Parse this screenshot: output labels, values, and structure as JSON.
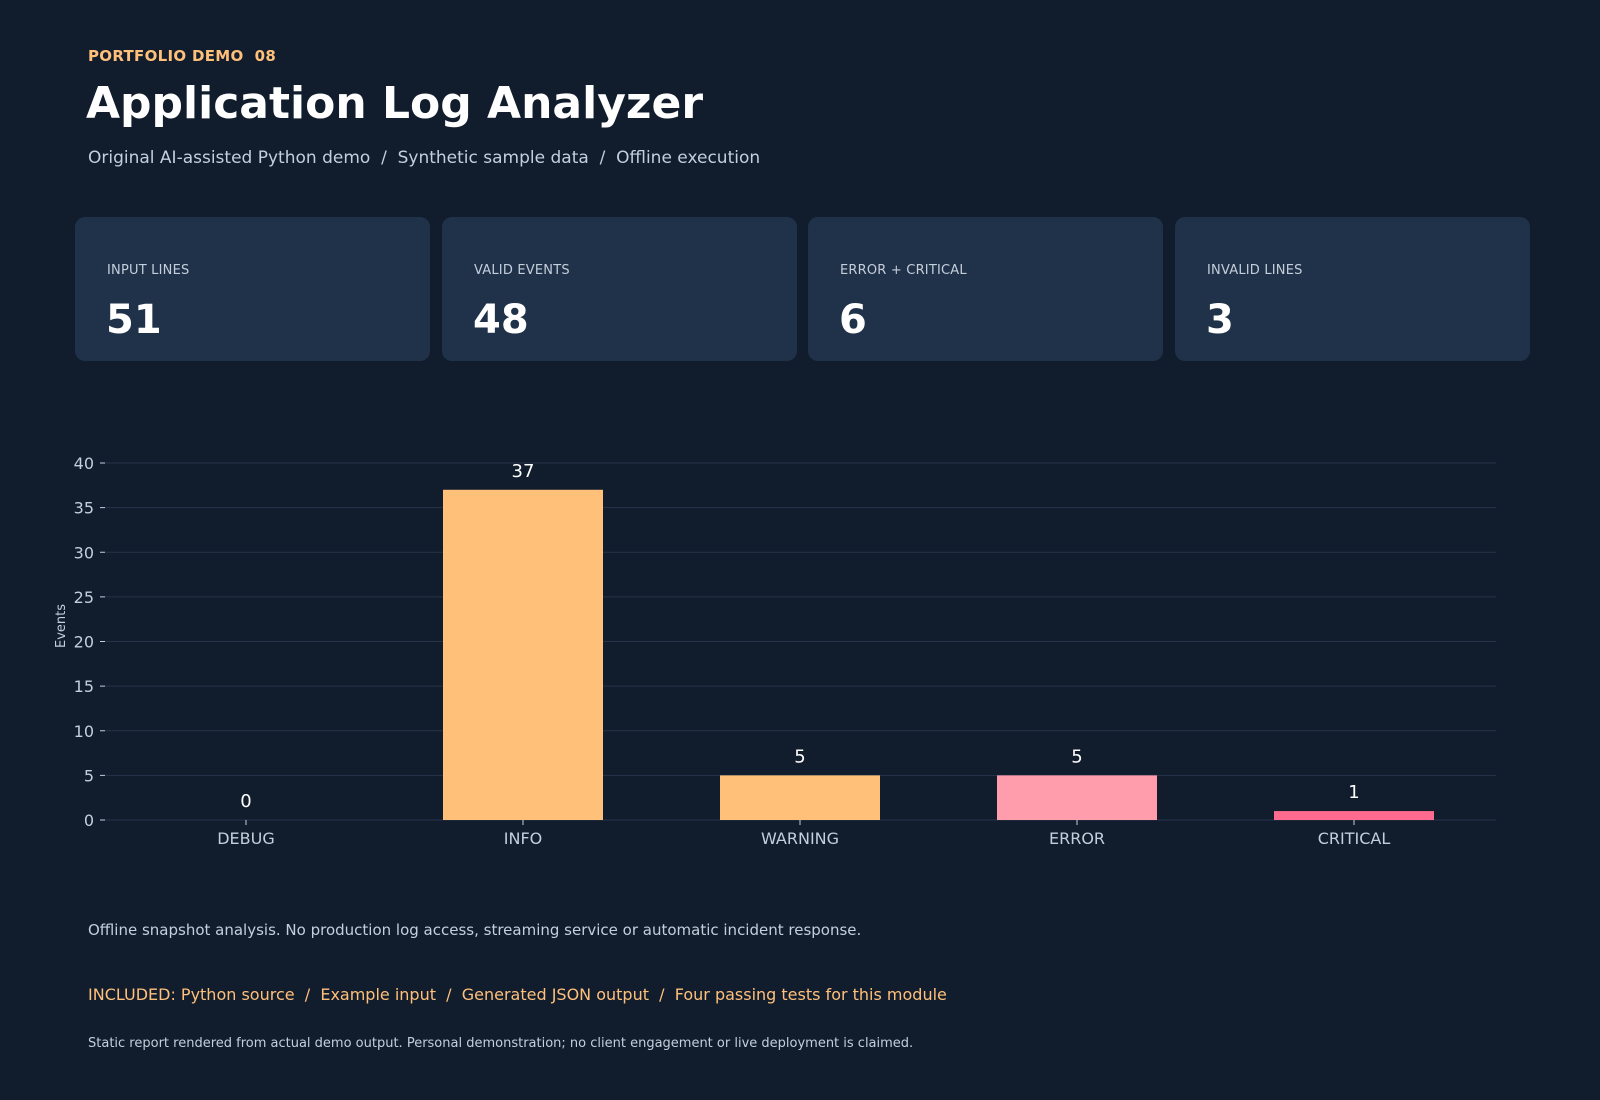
{
  "header": {
    "kicker": "PORTFOLIO DEMO  08",
    "title": "Application Log Analyzer",
    "subtitle": "Original AI-assisted Python demo  /  Synthetic sample data  /  Offline execution"
  },
  "cards": [
    {
      "label": "INPUT LINES",
      "value": "51"
    },
    {
      "label": "VALID EVENTS",
      "value": "48"
    },
    {
      "label": "ERROR + CRITICAL",
      "value": "6"
    },
    {
      "label": "INVALID LINES",
      "value": "3"
    }
  ],
  "chart_data": {
    "type": "bar",
    "categories": [
      "DEBUG",
      "INFO",
      "WARNING",
      "ERROR",
      "CRITICAL"
    ],
    "values": [
      0,
      37,
      5,
      5,
      1
    ],
    "data_labels": [
      "0",
      "37",
      "5",
      "5",
      "1"
    ],
    "bar_colors": [
      "#ffc07a",
      "#ffc07a",
      "#ffc07a",
      "#ff9dad",
      "#ff6b8e"
    ],
    "title": "",
    "xlabel": "",
    "ylabel": "Events",
    "ylim": [
      0,
      40
    ],
    "yticks": [
      0,
      5,
      10,
      15,
      20,
      25,
      30,
      35,
      40
    ],
    "grid": true,
    "legend": "none"
  },
  "footer": {
    "note": "Offline snapshot analysis. No production log access, streaming service or automatic incident response.",
    "included": "INCLUDED: Python source  /  Example input  /  Generated JSON output  /  Four passing tests for this module",
    "disclaimer": "Static report rendered from actual demo output. Personal demonstration; no client engagement or live deployment is claimed."
  },
  "colors": {
    "background": "#111c2d",
    "card": "#20324a",
    "accent": "#ffc07a",
    "muted_text": "#c5cedb"
  }
}
